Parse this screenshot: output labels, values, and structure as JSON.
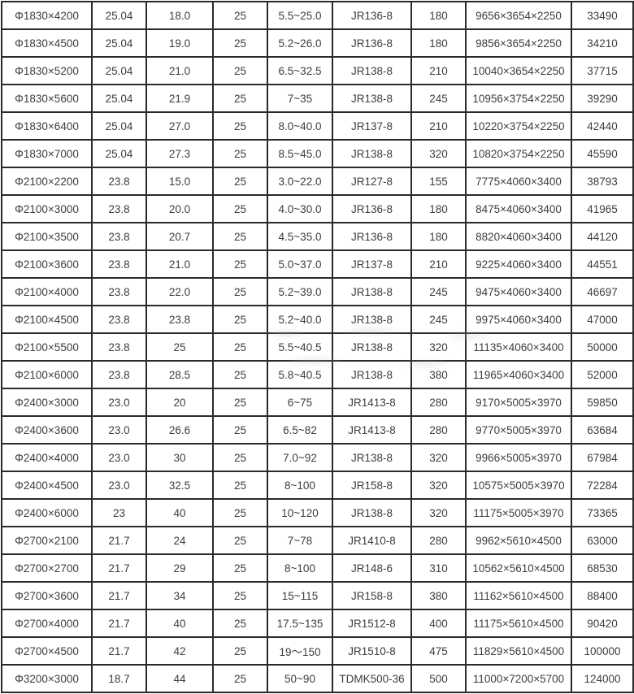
{
  "colors": {
    "border": "#2a2a2a",
    "text": "#3d3d3d",
    "background": "#ffffff",
    "watermark": "#bdbdbd"
  },
  "table": {
    "rows": [
      [
        "Φ1830×4200",
        "25.04",
        "18.0",
        "25",
        "5.5~25.0",
        "JR136-8",
        "180",
        "9656×3654×2250",
        "33490"
      ],
      [
        "Φ1830×4500",
        "25.04",
        "19.0",
        "25",
        "5.2~26.0",
        "JR136-8",
        "180",
        "9856×3654×2250",
        "34210"
      ],
      [
        "Φ1830×5200",
        "25.04",
        "21.0",
        "25",
        "6.5~32.5",
        "JR138-8",
        "210",
        "10040×3654×2250",
        "37715"
      ],
      [
        "Φ1830×5600",
        "25.04",
        "21.9",
        "25",
        "7~35",
        "JR138-8",
        "245",
        "10956×3754×2250",
        "39290"
      ],
      [
        "Φ1830×6400",
        "25.04",
        "27.0",
        "25",
        "8.0~40.0",
        "JR137-8",
        "210",
        "10220×3754×2250",
        "42440"
      ],
      [
        "Φ1830×7000",
        "25.04",
        "27.3",
        "25",
        "8.5~45.0",
        "JR138-8",
        "320",
        "10820×3754×2250",
        "45590"
      ],
      [
        "Φ2100×2200",
        "23.8",
        "15.0",
        "25",
        "3.0~22.0",
        "JR127-8",
        "155",
        "7775×4060×3400",
        "38793"
      ],
      [
        "Φ2100×3000",
        "23.8",
        "20.0",
        "25",
        "4.0~30.0",
        "JR136-8",
        "180",
        "8475×4060×3400",
        "41965"
      ],
      [
        "Φ2100×3500",
        "23.8",
        "20.7",
        "25",
        "4.5~35.0",
        "JR136-8",
        "180",
        "8820×4060×3400",
        "44120"
      ],
      [
        "Φ2100×3600",
        "23.8",
        "21.0",
        "25",
        "5.0~37.0",
        "JR137-8",
        "210",
        "9225×4060×3400",
        "44551"
      ],
      [
        "Φ2100×4000",
        "23.8",
        "22.0",
        "25",
        "5.2~39.0",
        "JR138-8",
        "245",
        "9475×4060×3400",
        "46697"
      ],
      [
        "Φ2100×4500",
        "23.8",
        "23.8",
        "25",
        "5.2~40.0",
        "JR138-8",
        "245",
        "9975×4060×3400",
        "47000"
      ],
      [
        "Φ2100×5500",
        "23.8",
        "25",
        "25",
        "5.5~40.5",
        "JR138-8",
        "320",
        "11135×4060×3400",
        "50000"
      ],
      [
        "Φ2100×6000",
        "23.8",
        "28.5",
        "25",
        "5.8~40.5",
        "JR138-8",
        "380",
        "11965×4060×3400",
        "52000"
      ],
      [
        "Φ2400×3000",
        "23.0",
        "20",
        "25",
        "6~75",
        "JR1413-8",
        "280",
        "9170×5005×3970",
        "59850"
      ],
      [
        "Φ2400×3600",
        "23.0",
        "26.6",
        "25",
        "6.5~82",
        "JR1413-8",
        "280",
        "9770×5005×3970",
        "63684"
      ],
      [
        "Φ2400×4000",
        "23.0",
        "30",
        "25",
        "7.0~92",
        "JR138-8",
        "320",
        "9966×5005×3970",
        "67984"
      ],
      [
        "Φ2400×4500",
        "23.0",
        "32.5",
        "25",
        "8~100",
        "JR158-8",
        "320",
        "10575×5005×3970",
        "72284"
      ],
      [
        "Φ2400×6000",
        "23",
        "40",
        "25",
        "10~120",
        "JR138-8",
        "320",
        "11175×5005×3970",
        "73365"
      ],
      [
        "Φ2700×2100",
        "21.7",
        "24",
        "25",
        "7~78",
        "JR1410-8",
        "280",
        "9962×5610×4500",
        "63000"
      ],
      [
        "Φ2700×2700",
        "21.7",
        "29",
        "25",
        "8~100",
        "JR148-6",
        "310",
        "10562×5610×4500",
        "68530"
      ],
      [
        "Φ2700×3600",
        "21.7",
        "34",
        "25",
        "15~115",
        "JR158-8",
        "380",
        "11162×5610×4500",
        "88400"
      ],
      [
        "Φ2700×4000",
        "21.7",
        "40",
        "25",
        "17.5~135",
        "JR1512-8",
        "400",
        "11175×5610×4500",
        "90420"
      ],
      [
        "Φ2700×4500",
        "21.7",
        "42",
        "25",
        "19～150",
        "JR1510-8",
        "475",
        "11829×5610×4500",
        "100000"
      ],
      [
        "Φ3200×3000",
        "18.7",
        "44",
        "25",
        "50~90",
        "TDMK500-36",
        "500",
        "11000×7200×5700",
        "124000"
      ]
    ]
  }
}
